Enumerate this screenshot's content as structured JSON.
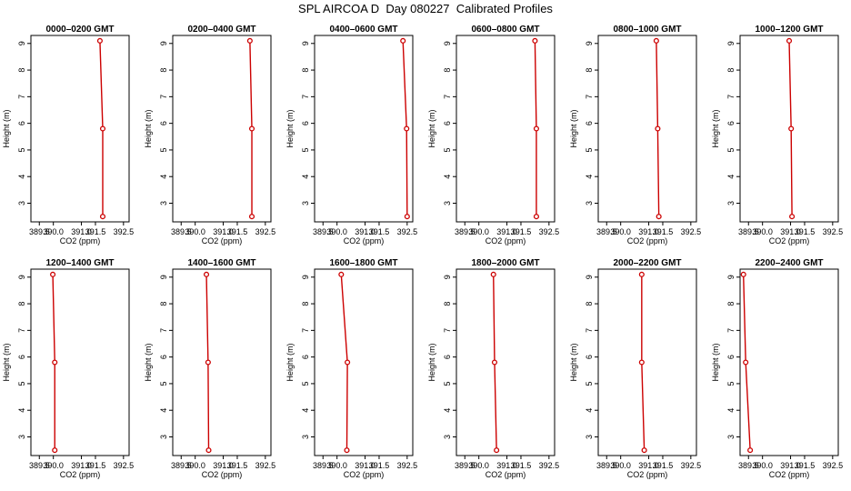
{
  "figure": {
    "title": "SPL AIRCOA D  Day 080227  Calibrated Profiles"
  },
  "style": {
    "line_color": "#cc0000",
    "axis_color": "#000000",
    "background": "#ffffff"
  },
  "chart_data": [
    {
      "type": "line",
      "title": "0000–0200 GMT",
      "xlabel": "CO2 (ppm)",
      "ylabel": "Height (m)",
      "xlim": [
        389.2,
        392.7
      ],
      "ylim": [
        2.3,
        9.3
      ],
      "xticks": [
        389.5,
        390.0,
        391.0,
        391.5,
        392.5
      ],
      "xtick_labels": [
        "389.5",
        "390.0",
        "391.0",
        "391.5",
        "392.5"
      ],
      "yticks": [
        3,
        4,
        5,
        6,
        7,
        8,
        9
      ],
      "grid": false,
      "legend": "none",
      "series": [
        {
          "co2": [
            391.76,
            391.76,
            391.66
          ],
          "height": [
            2.5,
            5.8,
            9.1
          ]
        }
      ]
    },
    {
      "type": "line",
      "title": "0200–0400 GMT",
      "xlabel": "CO2 (ppm)",
      "ylabel": "Height (m)",
      "xlim": [
        389.2,
        392.7
      ],
      "ylim": [
        2.3,
        9.3
      ],
      "xticks": [
        389.5,
        390.0,
        391.0,
        391.5,
        392.5
      ],
      "xtick_labels": [
        "389.5",
        "390.0",
        "391.0",
        "391.5",
        "392.5"
      ],
      "yticks": [
        3,
        4,
        5,
        6,
        7,
        8,
        9
      ],
      "grid": false,
      "legend": "none",
      "series": [
        {
          "co2": [
            392.02,
            392.02,
            391.95
          ],
          "height": [
            2.5,
            5.8,
            9.1
          ]
        }
      ]
    },
    {
      "type": "line",
      "title": "0400–0600 GMT",
      "xlabel": "CO2 (ppm)",
      "ylabel": "Height (m)",
      "xlim": [
        389.2,
        392.7
      ],
      "ylim": [
        2.3,
        9.3
      ],
      "xticks": [
        389.5,
        390.0,
        391.0,
        391.5,
        392.5
      ],
      "xtick_labels": [
        "389.5",
        "390.0",
        "391.0",
        "391.5",
        "392.5"
      ],
      "yticks": [
        3,
        4,
        5,
        6,
        7,
        8,
        9
      ],
      "grid": false,
      "legend": "none",
      "series": [
        {
          "co2": [
            392.5,
            392.48,
            392.35
          ],
          "height": [
            2.5,
            5.8,
            9.1
          ]
        }
      ]
    },
    {
      "type": "line",
      "title": "0600–0800 GMT",
      "xlabel": "CO2 (ppm)",
      "ylabel": "Height (m)",
      "xlim": [
        389.2,
        392.7
      ],
      "ylim": [
        2.3,
        9.3
      ],
      "xticks": [
        389.5,
        390.0,
        391.0,
        391.5,
        392.5
      ],
      "xtick_labels": [
        "389.5",
        "390.0",
        "391.0",
        "391.5",
        "392.5"
      ],
      "yticks": [
        3,
        4,
        5,
        6,
        7,
        8,
        9
      ],
      "grid": false,
      "legend": "none",
      "series": [
        {
          "co2": [
            392.05,
            392.05,
            392.0
          ],
          "height": [
            2.5,
            5.8,
            9.1
          ]
        }
      ]
    },
    {
      "type": "line",
      "title": "0800–1000 GMT",
      "xlabel": "CO2 (ppm)",
      "ylabel": "Height (m)",
      "xlim": [
        389.2,
        392.7
      ],
      "ylim": [
        2.3,
        9.3
      ],
      "xticks": [
        389.5,
        390.0,
        391.0,
        391.5,
        392.5
      ],
      "xtick_labels": [
        "389.5",
        "390.0",
        "391.0",
        "391.5",
        "392.5"
      ],
      "yticks": [
        3,
        4,
        5,
        6,
        7,
        8,
        9
      ],
      "grid": false,
      "legend": "none",
      "series": [
        {
          "co2": [
            391.36,
            391.32,
            391.27
          ],
          "height": [
            2.5,
            5.8,
            9.1
          ]
        }
      ]
    },
    {
      "type": "line",
      "title": "1000–1200 GMT",
      "xlabel": "CO2 (ppm)",
      "ylabel": "Height (m)",
      "xlim": [
        389.2,
        392.7
      ],
      "ylim": [
        2.3,
        9.3
      ],
      "xticks": [
        389.5,
        390.0,
        391.0,
        391.5,
        392.5
      ],
      "xtick_labels": [
        "389.5",
        "390.0",
        "391.0",
        "391.5",
        "392.5"
      ],
      "yticks": [
        3,
        4,
        5,
        6,
        7,
        8,
        9
      ],
      "grid": false,
      "legend": "none",
      "series": [
        {
          "co2": [
            391.05,
            391.02,
            390.95
          ],
          "height": [
            2.5,
            5.8,
            9.1
          ]
        }
      ]
    },
    {
      "type": "line",
      "title": "1200–1400 GMT",
      "xlabel": "CO2 (ppm)",
      "ylabel": "Height (m)",
      "xlim": [
        389.2,
        392.7
      ],
      "ylim": [
        2.3,
        9.3
      ],
      "xticks": [
        389.5,
        390.0,
        391.0,
        391.5,
        392.5
      ],
      "xtick_labels": [
        "389.5",
        "390.0",
        "391.0",
        "391.5",
        "392.5"
      ],
      "yticks": [
        3,
        4,
        5,
        6,
        7,
        8,
        9
      ],
      "grid": false,
      "legend": "none",
      "series": [
        {
          "co2": [
            390.05,
            390.05,
            389.98
          ],
          "height": [
            2.5,
            5.8,
            9.1
          ]
        }
      ]
    },
    {
      "type": "line",
      "title": "1400–1600 GMT",
      "xlabel": "CO2 (ppm)",
      "ylabel": "Height (m)",
      "xlim": [
        389.2,
        392.7
      ],
      "ylim": [
        2.3,
        9.3
      ],
      "xticks": [
        389.5,
        390.0,
        391.0,
        391.5,
        392.5
      ],
      "xtick_labels": [
        "389.5",
        "390.0",
        "391.0",
        "391.5",
        "392.5"
      ],
      "yticks": [
        3,
        4,
        5,
        6,
        7,
        8,
        9
      ],
      "grid": false,
      "legend": "none",
      "series": [
        {
          "co2": [
            390.48,
            390.46,
            390.4
          ],
          "height": [
            2.5,
            5.8,
            9.1
          ]
        }
      ]
    },
    {
      "type": "line",
      "title": "1600–1800 GMT",
      "xlabel": "CO2 (ppm)",
      "ylabel": "Height (m)",
      "xlim": [
        389.2,
        392.7
      ],
      "ylim": [
        2.3,
        9.3
      ],
      "xticks": [
        389.5,
        390.0,
        391.0,
        391.5,
        392.5
      ],
      "xtick_labels": [
        "389.5",
        "390.0",
        "391.0",
        "391.5",
        "392.5"
      ],
      "yticks": [
        3,
        4,
        5,
        6,
        7,
        8,
        9
      ],
      "grid": false,
      "legend": "none",
      "series": [
        {
          "co2": [
            390.35,
            390.37,
            390.15
          ],
          "height": [
            2.5,
            5.8,
            9.1
          ]
        }
      ]
    },
    {
      "type": "line",
      "title": "1800–2000 GMT",
      "xlabel": "CO2 (ppm)",
      "ylabel": "Height (m)",
      "xlim": [
        389.2,
        392.7
      ],
      "ylim": [
        2.3,
        9.3
      ],
      "xticks": [
        389.5,
        390.0,
        391.0,
        391.5,
        392.5
      ],
      "xtick_labels": [
        "389.5",
        "390.0",
        "391.0",
        "391.5",
        "392.5"
      ],
      "yticks": [
        3,
        4,
        5,
        6,
        7,
        8,
        9
      ],
      "grid": false,
      "legend": "none",
      "series": [
        {
          "co2": [
            390.63,
            390.56,
            390.52
          ],
          "height": [
            2.5,
            5.8,
            9.1
          ]
        }
      ]
    },
    {
      "type": "line",
      "title": "2000–2200 GMT",
      "xlabel": "CO2 (ppm)",
      "ylabel": "Height (m)",
      "xlim": [
        389.2,
        392.7
      ],
      "ylim": [
        2.3,
        9.3
      ],
      "xticks": [
        389.5,
        390.0,
        391.0,
        391.5,
        392.5
      ],
      "xtick_labels": [
        "389.5",
        "390.0",
        "391.0",
        "391.5",
        "392.5"
      ],
      "yticks": [
        3,
        4,
        5,
        6,
        7,
        8,
        9
      ],
      "grid": false,
      "legend": "none",
      "series": [
        {
          "co2": [
            390.84,
            390.75,
            390.75
          ],
          "height": [
            2.5,
            5.8,
            9.1
          ]
        }
      ]
    },
    {
      "type": "line",
      "title": "2200–2400 GMT",
      "xlabel": "CO2 (ppm)",
      "ylabel": "Height (m)",
      "xlim": [
        389.2,
        392.7
      ],
      "ylim": [
        2.3,
        9.3
      ],
      "xticks": [
        389.5,
        390.0,
        391.0,
        391.5,
        392.5
      ],
      "xtick_labels": [
        "389.5",
        "390.0",
        "391.0",
        "391.5",
        "392.5"
      ],
      "yticks": [
        3,
        4,
        5,
        6,
        7,
        8,
        9
      ],
      "grid": false,
      "legend": "none",
      "series": [
        {
          "co2": [
            389.56,
            389.4,
            389.32
          ],
          "height": [
            2.5,
            5.8,
            9.1
          ]
        }
      ]
    }
  ]
}
